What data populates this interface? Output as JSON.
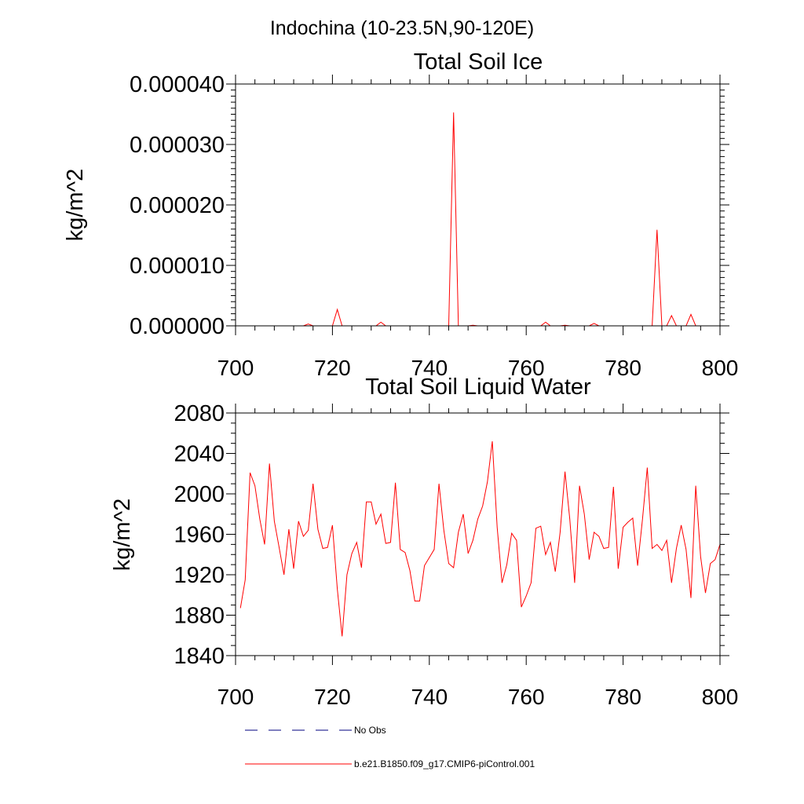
{
  "figure": {
    "title": "Indochina (10-23.5N,90-120E)",
    "line_color": "#ff0000",
    "obs_color": "#000080"
  },
  "chart_data": [
    {
      "type": "line",
      "title": "Total Soil Ice",
      "xlabel": "",
      "ylabel": "kg/m^2",
      "xlim": [
        700,
        800
      ],
      "ylim": [
        0,
        4e-05
      ],
      "x_ticks": [
        700,
        720,
        740,
        760,
        780,
        800
      ],
      "x_tick_labels": [
        "700",
        "720",
        "740",
        "760",
        "780",
        "800"
      ],
      "y_ticks": [
        0,
        1e-05,
        2e-05,
        3e-05,
        4e-05
      ],
      "y_tick_labels": [
        "0.000000",
        "0.000010",
        "0.000020",
        "0.000030",
        "0.000040"
      ],
      "series": [
        {
          "color": "#ff0000",
          "x": [
            701,
            714,
            715,
            716,
            720,
            721,
            722,
            729,
            730,
            731,
            744,
            745,
            746,
            748,
            749,
            750,
            763,
            764,
            765,
            767,
            768,
            769,
            773,
            774,
            775,
            786,
            787,
            788,
            789,
            790,
            791,
            793,
            794,
            795,
            800
          ],
          "y": [
            0,
            0,
            3e-07,
            0,
            0,
            2.7e-06,
            0,
            0,
            6e-07,
            0,
            0,
            3.53e-05,
            0,
            0,
            1e-07,
            0,
            0,
            6e-07,
            0,
            0,
            1e-07,
            0,
            0,
            4e-07,
            0,
            0,
            1.59e-05,
            0,
            0,
            1.7e-06,
            0,
            0,
            1.9e-06,
            0,
            0
          ]
        }
      ]
    },
    {
      "type": "line",
      "title": "Total Soil Liquid Water",
      "xlabel": "",
      "ylabel": "kg/m^2",
      "xlim": [
        700,
        800
      ],
      "ylim": [
        1840,
        2080
      ],
      "x_ticks": [
        700,
        720,
        740,
        760,
        780,
        800
      ],
      "x_tick_labels": [
        "700",
        "720",
        "740",
        "760",
        "780",
        "800"
      ],
      "y_ticks": [
        1840,
        1880,
        1920,
        1960,
        2000,
        2040,
        2080
      ],
      "y_tick_labels": [
        "1840",
        "1880",
        "1920",
        "1960",
        "2000",
        "2040",
        "2080"
      ],
      "series": [
        {
          "color": "#ff0000",
          "x": [
            701,
            702,
            703,
            704,
            705,
            706,
            707,
            708,
            709,
            710,
            711,
            712,
            713,
            714,
            715,
            716,
            717,
            718,
            719,
            720,
            721,
            722,
            723,
            724,
            725,
            726,
            727,
            728,
            729,
            730,
            731,
            732,
            733,
            734,
            735,
            736,
            737,
            738,
            739,
            740,
            741,
            742,
            743,
            744,
            745,
            746,
            747,
            748,
            749,
            750,
            751,
            752,
            753,
            754,
            755,
            756,
            757,
            758,
            759,
            760,
            761,
            762,
            763,
            764,
            765,
            766,
            767,
            768,
            769,
            770,
            771,
            772,
            773,
            774,
            775,
            776,
            777,
            778,
            779,
            780,
            781,
            782,
            783,
            784,
            785,
            786,
            787,
            788,
            789,
            790,
            791,
            792,
            793,
            794,
            795,
            796,
            797,
            798,
            799,
            800
          ],
          "y": [
            1887,
            1915,
            2021,
            2008,
            1975,
            1950,
            2030,
            1973,
            1947,
            1920,
            1965,
            1926,
            1973,
            1958,
            1964,
            2010,
            1965,
            1946,
            1947,
            1969,
            1906,
            1859,
            1920,
            1941,
            1952,
            1927,
            1992,
            1992,
            1970,
            1980,
            1951,
            1952,
            2011,
            1945,
            1942,
            1924,
            1894,
            1894,
            1929,
            1937,
            1945,
            2010,
            1964,
            1931,
            1927,
            1962,
            1980,
            1941,
            1954,
            1975,
            1988,
            2012,
            2052,
            1967,
            1912,
            1930,
            1961,
            1954,
            1888,
            1899,
            1912,
            1966,
            1968,
            1940,
            1952,
            1923,
            1962,
            2022,
            1975,
            1912,
            2008,
            1980,
            1935,
            1962,
            1958,
            1946,
            1947,
            2007,
            1926,
            1967,
            1972,
            1976,
            1929,
            1975,
            2026,
            1946,
            1950,
            1944,
            1954,
            1912,
            1946,
            1969,
            1945,
            1897,
            2008,
            1938,
            1902,
            1931,
            1935,
            1950
          ]
        }
      ]
    }
  ],
  "legend": {
    "items": [
      {
        "label": "No Obs",
        "style": "dashed",
        "color": "#000080"
      },
      {
        "label": "b.e21.B1850.f09_g17.CMIP6-piControl.001",
        "style": "solid",
        "color": "#ff0000"
      }
    ]
  }
}
